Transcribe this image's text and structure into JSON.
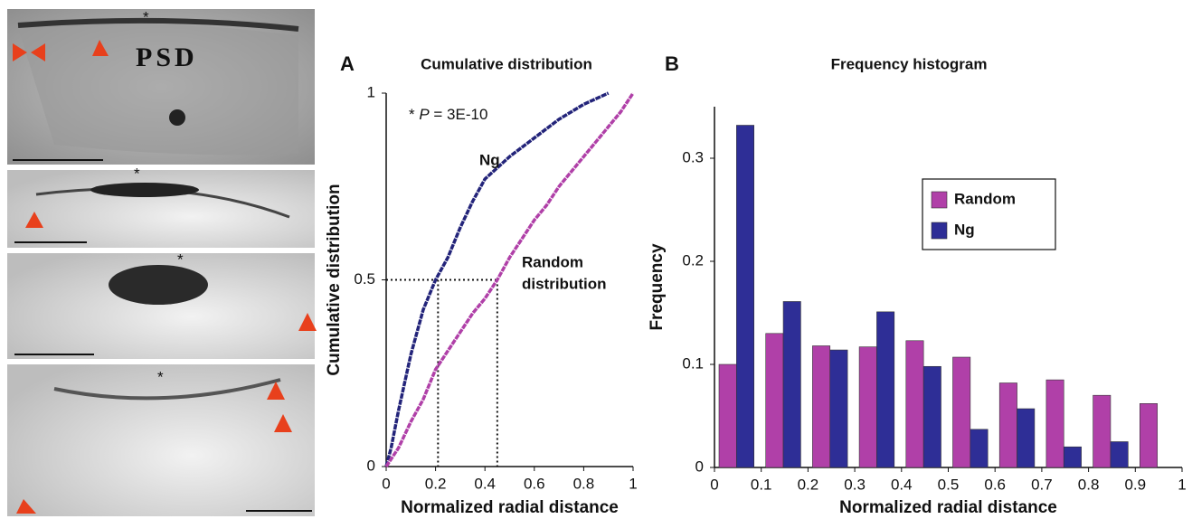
{
  "micrographs": {
    "psd_label": "PSD",
    "asterisk": "*"
  },
  "chart_data": [
    {
      "type": "line",
      "panel_letter": "A",
      "title": "Cumulative distribution",
      "x_label": "Normalized radial distance",
      "y_label": "Cumulative distribution",
      "annotation": [
        "* ",
        "P",
        " = 3E-10"
      ],
      "series": [
        {
          "name": "Ng",
          "color": "#23247a",
          "x": [
            0,
            0.02,
            0.05,
            0.1,
            0.15,
            0.2,
            0.25,
            0.3,
            0.35,
            0.4,
            0.5,
            0.6,
            0.7,
            0.8,
            0.9
          ],
          "values": [
            0,
            0.05,
            0.15,
            0.3,
            0.42,
            0.5,
            0.56,
            0.64,
            0.71,
            0.77,
            0.83,
            0.88,
            0.93,
            0.97,
            1.0
          ]
        },
        {
          "name": [
            "Random",
            "distribution"
          ],
          "color": "#b040a8",
          "x": [
            0,
            0.05,
            0.1,
            0.15,
            0.2,
            0.25,
            0.3,
            0.35,
            0.4,
            0.45,
            0.5,
            0.55,
            0.6,
            0.65,
            0.7,
            0.75,
            0.8,
            0.85,
            0.9,
            0.95,
            1.0
          ],
          "values": [
            0,
            0.05,
            0.12,
            0.18,
            0.26,
            0.31,
            0.36,
            0.41,
            0.45,
            0.5,
            0.56,
            0.61,
            0.66,
            0.7,
            0.75,
            0.79,
            0.83,
            0.87,
            0.91,
            0.95,
            1.0
          ]
        }
      ],
      "median_markers": [
        {
          "x": 0.21,
          "y": 0.5
        },
        {
          "x": 0.45,
          "y": 0.5
        }
      ],
      "xlim": [
        0,
        1
      ],
      "xticks": [
        0,
        0.2,
        0.4,
        0.6,
        0.8,
        1
      ],
      "ylim": [
        0,
        1
      ],
      "yticks": [
        0,
        0.5,
        1
      ]
    },
    {
      "type": "histogram",
      "panel_letter": "B",
      "title": "Frequency histogram",
      "x_label": "Normalized radial distance",
      "y_label": "Frequency",
      "bins": [
        0,
        0.1,
        0.2,
        0.3,
        0.4,
        0.5,
        0.6,
        0.7,
        0.8,
        0.9,
        1
      ],
      "series": [
        {
          "name": "Random",
          "color": "#b040a8",
          "values": [
            0.1,
            0.13,
            0.118,
            0.117,
            0.123,
            0.107,
            0.082,
            0.085,
            0.07,
            0.062
          ]
        },
        {
          "name": "Ng",
          "color": "#2e2e96",
          "values": [
            0.332,
            0.161,
            0.114,
            0.151,
            0.098,
            0.037,
            0.057,
            0.02,
            0.025,
            0
          ]
        }
      ],
      "xlim": [
        0,
        1
      ],
      "xticks": [
        0,
        0.1,
        0.2,
        0.3,
        0.4,
        0.5,
        0.6,
        0.7,
        0.8,
        0.9,
        1
      ],
      "ylim": [
        0,
        0.35
      ],
      "yticks": [
        0,
        0.1,
        0.2,
        0.3
      ],
      "legend": "upper-right"
    }
  ]
}
